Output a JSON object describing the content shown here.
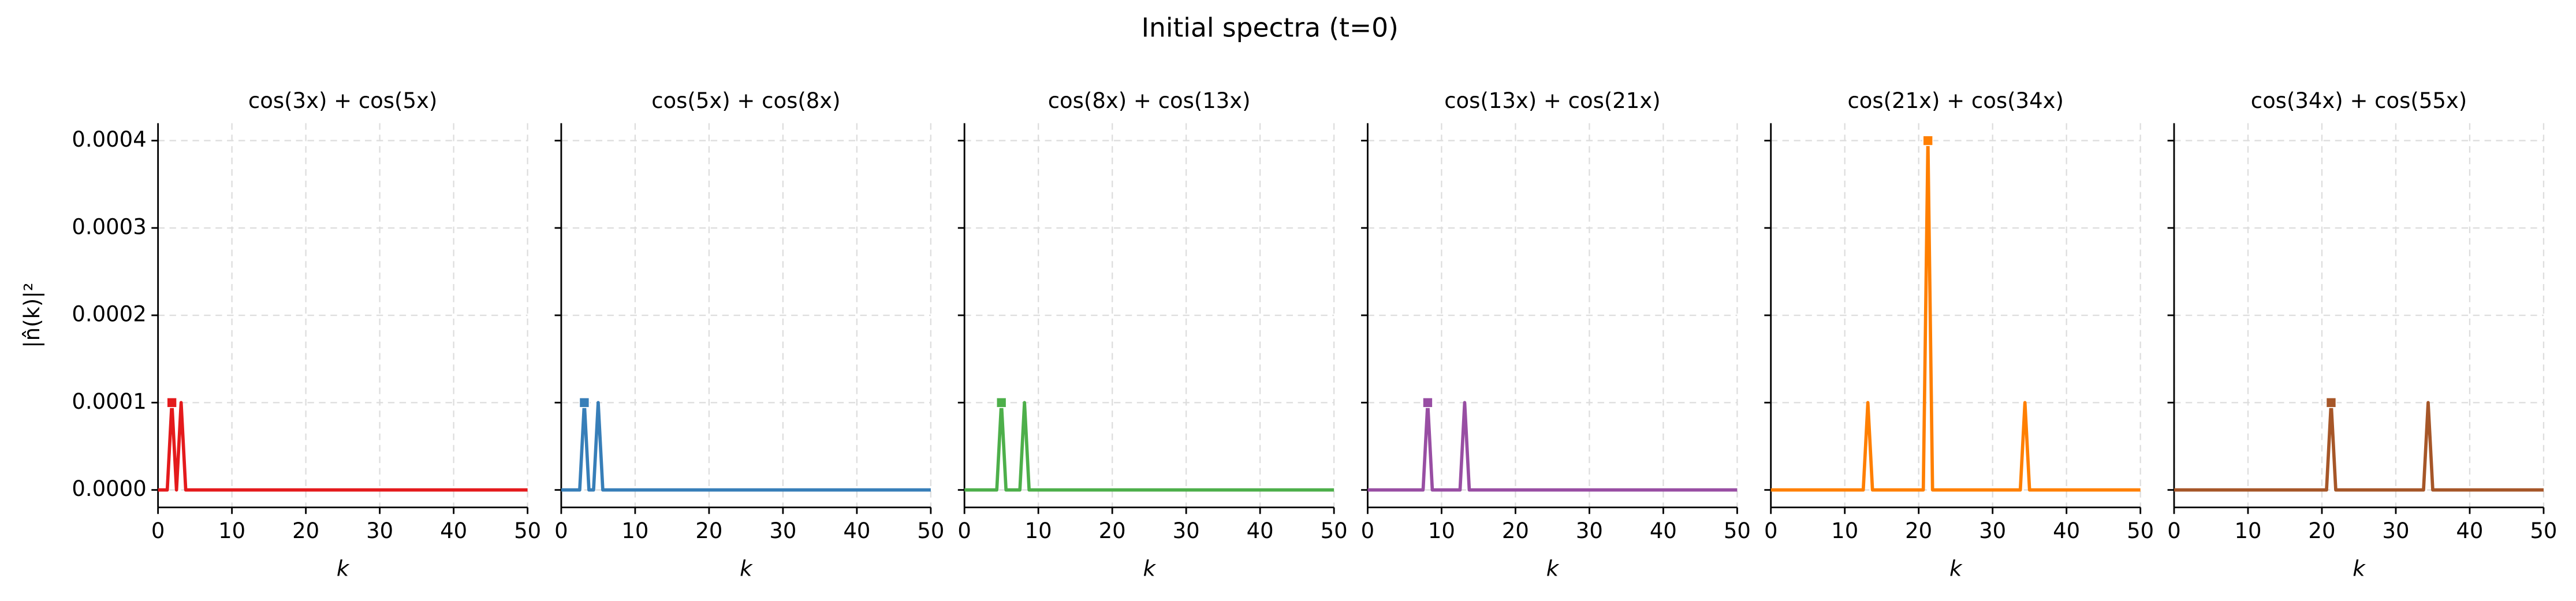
{
  "title": "Initial spectra (t=0)",
  "chart_data": [
    {
      "type": "line",
      "title": "cos(3x) + cos(5x)",
      "xlabel": "k",
      "ylabel": "|n̂(k)|²",
      "x": [
        0,
        1.25,
        1.875,
        2.5,
        3.125,
        3.75,
        50
      ],
      "series": [
        {
          "color": "#e41a1c",
          "values": [
            0,
            0,
            0.0001,
            0,
            0.0001,
            0,
            0
          ]
        }
      ],
      "xlim": [
        0,
        50
      ],
      "xticks": [
        0,
        10,
        20,
        30,
        40,
        50
      ],
      "ylim": [
        -2e-05,
        0.00042
      ],
      "yticks": [
        {
          "value": 0,
          "label": "0.0000"
        },
        {
          "value": 0.0001,
          "label": "0.0001"
        },
        {
          "value": 0.0002,
          "label": "0.0002"
        },
        {
          "value": 0.0003,
          "label": "0.0003"
        },
        {
          "value": 0.0004,
          "label": "0.0004"
        }
      ],
      "grid": true
    },
    {
      "type": "line",
      "title": "cos(5x) + cos(8x)",
      "xlabel": "k",
      "x": [
        0,
        2.5,
        3.125,
        3.75,
        4.375,
        5,
        5.625,
        50
      ],
      "series": [
        {
          "color": "#377eb8",
          "values": [
            0,
            0,
            0.0001,
            0,
            0,
            0.0001,
            0,
            0
          ]
        }
      ],
      "xlim": [
        0,
        50
      ],
      "xticks": [
        0,
        10,
        20,
        30,
        40,
        50
      ],
      "ylim": [
        -2e-05,
        0.00042
      ],
      "yticks": [
        0,
        0.0001,
        0.0002,
        0.0003,
        0.0004
      ],
      "grid": true
    },
    {
      "type": "line",
      "title": "cos(8x) + cos(13x)",
      "xlabel": "k",
      "x": [
        0,
        4.375,
        5,
        5.625,
        7.5,
        8.125,
        8.75,
        50
      ],
      "series": [
        {
          "color": "#4daf4a",
          "values": [
            0,
            0,
            0.0001,
            0,
            0,
            0.0001,
            0,
            0
          ]
        }
      ],
      "xlim": [
        0,
        50
      ],
      "xticks": [
        0,
        10,
        20,
        30,
        40,
        50
      ],
      "ylim": [
        -2e-05,
        0.00042
      ],
      "yticks": [
        0,
        0.0001,
        0.0002,
        0.0003,
        0.0004
      ],
      "grid": true
    },
    {
      "type": "line",
      "title": "cos(13x) + cos(21x)",
      "xlabel": "k",
      "x": [
        0,
        7.5,
        8.125,
        8.75,
        12.5,
        13.125,
        13.75,
        50
      ],
      "series": [
        {
          "color": "#984ea3",
          "values": [
            0,
            0,
            0.0001,
            0,
            0,
            0.0001,
            0,
            0
          ]
        }
      ],
      "xlim": [
        0,
        50
      ],
      "xticks": [
        0,
        10,
        20,
        30,
        40,
        50
      ],
      "ylim": [
        -2e-05,
        0.00042
      ],
      "yticks": [
        0,
        0.0001,
        0.0002,
        0.0003,
        0.0004
      ],
      "grid": true
    },
    {
      "type": "line",
      "title": "cos(21x) + cos(34x)",
      "xlabel": "k",
      "x": [
        0,
        12.5,
        13.125,
        13.75,
        20.625,
        21.25,
        21.875,
        33.75,
        34.375,
        35,
        50
      ],
      "series": [
        {
          "color": "#ff7f00",
          "values": [
            0,
            0,
            0.0001,
            0,
            0,
            0.0004,
            0,
            0,
            0.0001,
            0,
            0
          ]
        }
      ],
      "xlim": [
        0,
        50
      ],
      "xticks": [
        0,
        10,
        20,
        30,
        40,
        50
      ],
      "ylim": [
        -2e-05,
        0.00042
      ],
      "yticks": [
        0,
        0.0001,
        0.0002,
        0.0003,
        0.0004
      ],
      "grid": true
    },
    {
      "type": "line",
      "title": "cos(34x) + cos(55x)",
      "xlabel": "k",
      "x": [
        0,
        20.625,
        21.25,
        21.875,
        33.75,
        34.375,
        35,
        50
      ],
      "series": [
        {
          "color": "#a65628",
          "values": [
            0,
            0,
            0.0001,
            0,
            0,
            0.0001,
            0,
            0
          ]
        }
      ],
      "xlim": [
        0,
        50
      ],
      "xticks": [
        0,
        10,
        20,
        30,
        40,
        50
      ],
      "ylim": [
        -2e-05,
        0.00042
      ],
      "yticks": [
        0,
        0.0001,
        0.0002,
        0.0003,
        0.0004
      ],
      "grid": true
    }
  ]
}
